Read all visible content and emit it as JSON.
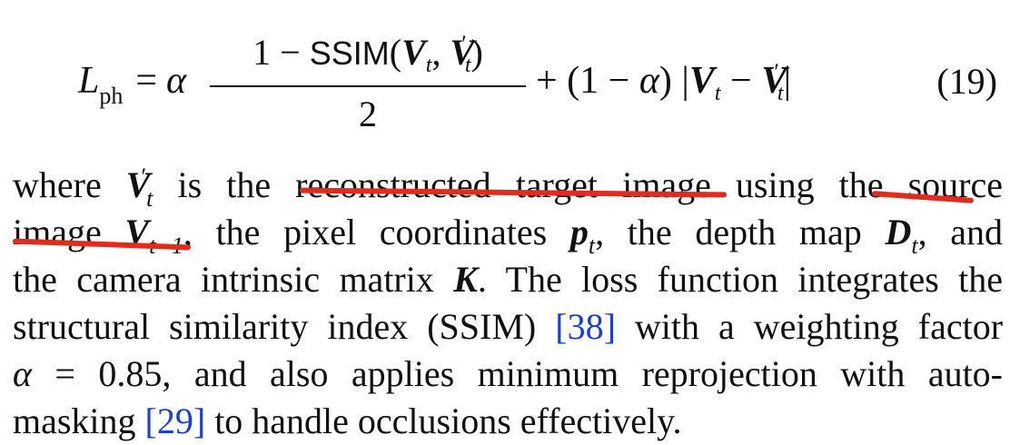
{
  "equation": {
    "lhs_symbol": "L",
    "lhs_subscript": "ph",
    "equals": "=",
    "alpha": "α",
    "numerator_one_minus": "1 −",
    "ssim_label": "SSIM",
    "open_paren": "(",
    "V": "V",
    "sub_t": "t",
    "comma": ",",
    "prime": "′",
    "close_paren": ")",
    "denominator": "2",
    "plus_part": "+ (1 − ",
    "alpha2": "α",
    "after_alpha": ") |",
    "minus": " − ",
    "abs_close": "|",
    "number": "(19)"
  },
  "paragraph": {
    "l1_a": "where ",
    "l1_V": "V",
    "l1_prime": "′",
    "l1_t": "t",
    "l1_b": " is the ",
    "l1_highlight": "reconstructed target image",
    "l1_c": " using the source",
    "l2_a": "image ",
    "l2_V": "V",
    "l2_sub": "t−1",
    "l2_b": ", the pixel coordinates ",
    "l2_p": "p",
    "l2_psub": "t",
    "l2_c": ", the depth map ",
    "l2_D": "D",
    "l2_dsub": "t",
    "l2_d": ", and",
    "l3_a": "the camera intrinsic matrix ",
    "l3_K": "K",
    "l3_b": ". The loss function integrates the",
    "l4_a": "structural similarity index (SSIM) ",
    "l4_cite": "[38]",
    "l4_b": " with a weighting factor",
    "l5_alpha": "α",
    "l5_a": " = 0.85, and also applies minimum reprojection with auto-",
    "l6_a": "masking ",
    "l6_cite": "[29]",
    "l6_b": " to handle occlusions effectively."
  },
  "colors": {
    "text": "#111111",
    "citation": "#1a3fd1",
    "annotation_underline": "#e12b1e"
  }
}
